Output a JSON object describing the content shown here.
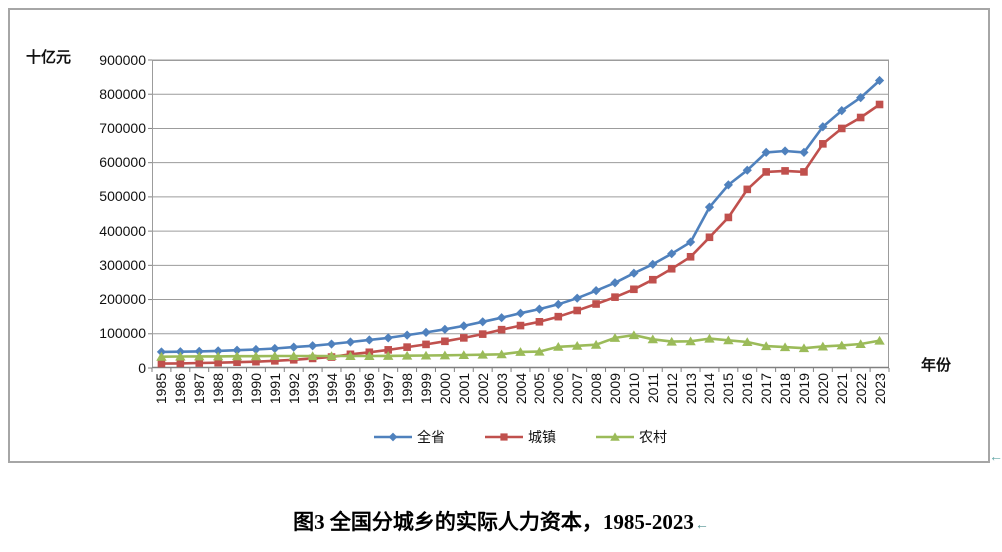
{
  "frame": {
    "unit_label": "十亿元",
    "axis_title": "年份"
  },
  "caption": {
    "text": "图3 全国分城乡的实际人力资本，1985-2023",
    "break_mark": "←"
  },
  "page_marks": {
    "edge_mark": "←"
  },
  "chart_data": {
    "type": "line",
    "title": "图3 全国分城乡的实际人力资本，1985-2023",
    "y_unit_label": "十亿元",
    "x_axis_title": "年份",
    "ylim": [
      0,
      900000
    ],
    "ytick_step": 100000,
    "grid": true,
    "gridline_color": "#9c9c9c",
    "axis_color": "#808080",
    "legend_position": "bottom",
    "x": [
      "1985",
      "1986",
      "1987",
      "1988",
      "1989",
      "1990",
      "1991",
      "1992",
      "1993",
      "1994",
      "1995",
      "1996",
      "1997",
      "1998",
      "1999",
      "2000",
      "2001",
      "2002",
      "2003",
      "2004",
      "2005",
      "2006",
      "2007",
      "2008",
      "2009",
      "2010",
      "2011",
      "2012",
      "2013",
      "2014",
      "2015",
      "2016",
      "2017",
      "2018",
      "2019",
      "2020",
      "2021",
      "2022",
      "2023"
    ],
    "series": [
      {
        "name": "全省",
        "key": "total",
        "color": "#4F81BD",
        "marker": "diamond",
        "values": [
          47000,
          47500,
          48500,
          50000,
          52000,
          54000,
          57000,
          61000,
          65000,
          70000,
          76000,
          82000,
          88000,
          96000,
          104000,
          113000,
          123000,
          135000,
          147000,
          160000,
          172000,
          186000,
          204000,
          226000,
          249000,
          277000,
          303000,
          334000,
          368000,
          470000,
          535000,
          578000,
          630000,
          634000,
          630000,
          705000,
          752000,
          790000,
          840000
        ]
      },
      {
        "name": "城镇",
        "key": "urban",
        "color": "#C0504D",
        "marker": "square",
        "values": [
          13000,
          13500,
          14500,
          15500,
          17000,
          18500,
          21000,
          24000,
          28000,
          32000,
          40000,
          46000,
          53000,
          61000,
          69000,
          78000,
          88000,
          99000,
          112000,
          124000,
          135000,
          150000,
          168000,
          187000,
          207000,
          230000,
          258000,
          290000,
          325000,
          382000,
          440000,
          522000,
          573000,
          576000,
          573000,
          655000,
          700000,
          732000,
          770000
        ]
      },
      {
        "name": "农村",
        "key": "rural",
        "color": "#9BBB59",
        "marker": "triangle",
        "values": [
          33000,
          33500,
          34000,
          34000,
          34500,
          34500,
          35000,
          35000,
          35000,
          35000,
          35000,
          35000,
          35500,
          36000,
          36500,
          37000,
          38000,
          39000,
          40000,
          47000,
          48000,
          62000,
          65000,
          68000,
          88000,
          96000,
          84000,
          77000,
          78000,
          86000,
          81000,
          76000,
          64000,
          61000,
          58000,
          63000,
          66000,
          70000,
          80000
        ]
      }
    ]
  }
}
